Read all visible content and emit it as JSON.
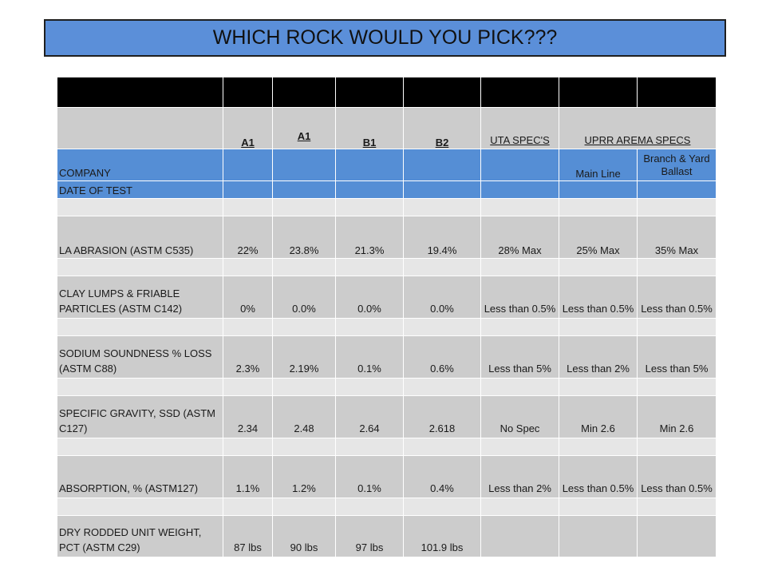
{
  "title": "WHICH ROCK WOULD YOU PICK???",
  "table": {
    "header": {
      "blank": "",
      "samples": [
        "A1",
        "A1",
        "B1",
        "B2"
      ],
      "uta": "UTA SPEC'S",
      "uprr": "UPRR AREMA SPECS"
    },
    "company_row": {
      "label": "COMPANY",
      "main_line": "Main Line",
      "branch": "Branch & Yard Ballast"
    },
    "date_row": {
      "label": "DATE OF TEST"
    },
    "rows": [
      {
        "label": "LA ABRASION (ASTM C535)",
        "values": [
          "22%",
          "23.8%",
          "21.3%",
          "19.4%",
          "28% Max",
          "25% Max",
          "35% Max"
        ]
      },
      {
        "label": "CLAY LUMPS & FRIABLE PARTICLES (ASTM C142)",
        "values": [
          "0%",
          "0.0%",
          "0.0%",
          "0.0%",
          "Less than 0.5%",
          "Less than 0.5%",
          "Less than 0.5%"
        ]
      },
      {
        "label": "SODIUM SOUNDNESS % LOSS (ASTM C88)",
        "values": [
          "2.3%",
          "2.19%",
          "0.1%",
          "0.6%",
          "Less than 5%",
          "Less than 2%",
          "Less than 5%"
        ]
      },
      {
        "label": "SPECIFIC GRAVITY, SSD (ASTM C127)",
        "values": [
          "2.34",
          "2.48",
          "2.64",
          "2.618",
          "No Spec",
          "Min 2.6",
          "Min 2.6"
        ]
      },
      {
        "label": "ABSORPTION, % (ASTM127)",
        "values": [
          "1.1%",
          "1.2%",
          "0.1%",
          "0.4%",
          "Less than 2%",
          "Less than 0.5%",
          "Less than 0.5%"
        ]
      },
      {
        "label": "DRY RODDED UNIT WEIGHT, PCT (ASTM C29)",
        "values": [
          "87 lbs",
          "90 lbs",
          "97 lbs",
          "101.9 lbs",
          "",
          "",
          ""
        ]
      }
    ]
  }
}
